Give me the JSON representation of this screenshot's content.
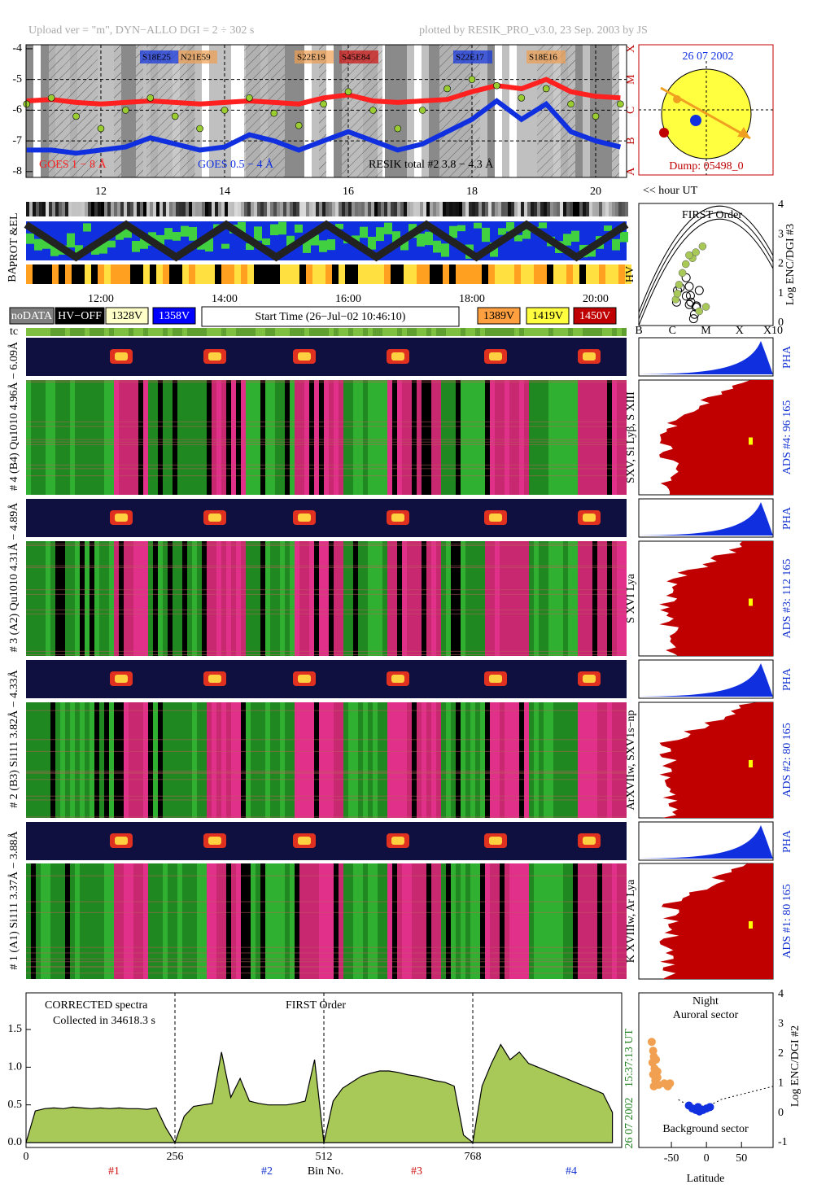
{
  "header": {
    "upload": "Upload ver = \"m\", DYN−ALLO DGI =   2 ÷ 302 s",
    "plotted": "plotted by RESIK_PRO_v3.0, 23 Sep. 2003 by JS"
  },
  "sun": {
    "date": "26 07 2002",
    "dump": "Dump: 05498_0"
  },
  "hour_label": "<< hour UT",
  "status": {
    "prot_el": "PROT &EL",
    "ba": "BA",
    "hv": "HV",
    "tc": "tc"
  },
  "legend": {
    "items": [
      {
        "label": "noDATA",
        "color": "#7f7f7f"
      },
      {
        "label": "HV−OFF",
        "color": "#000000"
      },
      {
        "label": "1328V",
        "color": "#ffffc8"
      },
      {
        "label": "1358V",
        "color": "#0000ff"
      },
      {
        "label": "1389V",
        "color": "#ffa040"
      },
      {
        "label": "1419V",
        "color": "#ffff40"
      },
      {
        "label": "1450V",
        "color": "#c00000"
      }
    ],
    "start_time": "Start Time (26−Jul−02 10:46:10)"
  },
  "channels": [
    {
      "label": "# 4 (B4)  Qu1010  4.96Å − 6.09Å",
      "lines": "SXV, Si Lyβ, S XIII",
      "ads": "ADS #4:   96 165",
      "pha": "PHA"
    },
    {
      "label": "# 3 (A2)  Qu1010  4.31Å − 4.89Å",
      "lines": "S XVI Lya",
      "ads": "ADS #3:   112 165",
      "pha": "PHA"
    },
    {
      "label": "# 2 (B3)  Si111  3.82Å − 4.33Å",
      "lines": "ArXVIIw, SXV1s−np",
      "ads": "ADS #2:   80 165",
      "pha": "PHA"
    },
    {
      "label": "# 1 (A1)  Si111  3.37Å − 3.88Å",
      "lines": "K XVIIIw, Ar Lya",
      "ads": "ADS #1:   80 165",
      "pha": "PHA"
    }
  ],
  "chart_data": [
    {
      "type": "line",
      "annotations": [
        "S18E25",
        "N21E59",
        "S22E19",
        "S45E84",
        "S22E17",
        "S18E16"
      ],
      "x": [
        10.8,
        11.2,
        11.6,
        12,
        12.4,
        12.8,
        13.2,
        13.6,
        14,
        14.4,
        14.8,
        15.2,
        15.6,
        16,
        16.4,
        16.8,
        17.2,
        17.6,
        18,
        18.4,
        18.8,
        19.2,
        19.6,
        20,
        20.4
      ],
      "series": [
        {
          "name": "GOES 1 − 8 Å",
          "color": "#ff2020",
          "style": "line",
          "values": [
            -5.7,
            -5.65,
            -5.75,
            -5.8,
            -5.75,
            -5.7,
            -5.75,
            -5.8,
            -5.75,
            -5.7,
            -5.75,
            -5.8,
            -5.6,
            -5.5,
            -5.7,
            -5.75,
            -5.7,
            -5.65,
            -5.4,
            -5.2,
            -5.3,
            -5.0,
            -5.4,
            -5.55,
            -5.6
          ]
        },
        {
          "name": "GOES 0.5 − 4 Å",
          "color": "#1030e0",
          "style": "line",
          "values": [
            -7.3,
            -7.3,
            -7.4,
            -7.3,
            -7.2,
            -6.9,
            -7.1,
            -7.3,
            -7.2,
            -6.8,
            -7.0,
            -7.3,
            -7.0,
            -6.7,
            -7.0,
            -7.3,
            -7.1,
            -6.7,
            -6.3,
            -5.7,
            -6.3,
            -5.8,
            -6.7,
            -7.0,
            -7.2
          ]
        },
        {
          "name": "RESIK total #2  3.8 − 4.3 Å",
          "color": "#9acd32",
          "style": "dots",
          "values": [
            -5.8,
            -5.6,
            -6.2,
            -6.6,
            -6.0,
            -5.6,
            -6.2,
            -6.6,
            -6.0,
            -5.6,
            -6.1,
            -6.5,
            -5.8,
            -5.4,
            -6.0,
            -6.6,
            -6.0,
            -5.3,
            -5.0,
            -5.2,
            -5.6,
            -5.3,
            -5.8,
            -6.2,
            -5.8
          ]
        }
      ],
      "xlim": [
        10.79,
        20.5
      ],
      "xticks": [
        12,
        14,
        16,
        18,
        20
      ],
      "xticks_bottom": [
        {
          "value": 12,
          "label": "12:00"
        },
        {
          "value": 14,
          "label": "14:00"
        },
        {
          "value": 16,
          "label": "16:00"
        },
        {
          "value": 18,
          "label": "18:00"
        },
        {
          "value": 20,
          "label": "20:00"
        }
      ],
      "ylim": [
        -8.19,
        -3.87
      ],
      "yticks": [
        -4,
        -5,
        -6,
        -7,
        -8
      ],
      "class_ticks": [
        {
          "value": -4,
          "label": "X"
        },
        {
          "value": -5,
          "label": "M"
        },
        {
          "value": -6,
          "label": "C"
        },
        {
          "value": -7,
          "label": "B"
        },
        {
          "value": -8,
          "label": "A"
        }
      ],
      "grid": true
    },
    {
      "type": "area",
      "title": "FIRST Order",
      "notes": [
        "CORRECTED spectra",
        "Collected in 34618.3 s"
      ],
      "xlabel": "Bin No.",
      "color": "#a8c858",
      "channel_labels": [
        {
          "text": "#1",
          "color": "#d01010"
        },
        {
          "text": "#2",
          "color": "#1030d0"
        },
        {
          "text": "#3",
          "color": "#d01010"
        },
        {
          "text": "#4",
          "color": "#1030d0"
        }
      ],
      "side_labels": [
        "15:37:13 UT",
        "26 07 2002"
      ],
      "x": [
        0,
        16,
        32,
        48,
        64,
        80,
        96,
        112,
        128,
        144,
        160,
        176,
        192,
        208,
        224,
        240,
        256,
        272,
        288,
        304,
        320,
        336,
        352,
        368,
        384,
        400,
        416,
        432,
        448,
        464,
        480,
        496,
        512,
        528,
        544,
        560,
        576,
        592,
        608,
        624,
        640,
        656,
        672,
        688,
        704,
        720,
        736,
        752,
        768,
        784,
        800,
        816,
        832,
        848,
        864,
        880,
        896,
        912,
        928,
        944,
        960,
        976,
        992,
        1008
      ],
      "values": [
        0,
        0.42,
        0.45,
        0.46,
        0.45,
        0.47,
        0.46,
        0.45,
        0.46,
        0.45,
        0.46,
        0.45,
        0.45,
        0.44,
        0.46,
        0.2,
        0,
        0.35,
        0.48,
        0.5,
        0.52,
        1.2,
        0.6,
        0.85,
        0.55,
        0.52,
        0.5,
        0.5,
        0.5,
        0.52,
        0.55,
        1.1,
        0,
        0.55,
        0.72,
        0.8,
        0.88,
        0.92,
        0.95,
        0.95,
        0.93,
        0.9,
        0.88,
        0.85,
        0.82,
        0.8,
        0.75,
        0.1,
        0,
        0.75,
        1.05,
        1.3,
        1.1,
        1.2,
        1.05,
        1.0,
        0.95,
        0.9,
        0.85,
        0.8,
        0.75,
        0.7,
        0.65,
        0.4
      ],
      "xlim": [
        0,
        1024
      ],
      "xticks": [
        0,
        256,
        512,
        768
      ],
      "ylim": [
        -0.065,
        1.986
      ],
      "yticks": [
        {
          "value": 0,
          "label": "0.0"
        },
        {
          "value": 0.5,
          "label": "0.5"
        },
        {
          "value": 1,
          "label": "1.0"
        },
        {
          "value": 1.5,
          "label": "1.5"
        }
      ]
    },
    {
      "type": "scatter",
      "title": "Night",
      "labels": [
        "Auroral sector",
        "Background sector"
      ],
      "xlabel": "Latitude",
      "ylabel": "Log ENC/DGI #2",
      "series": [
        {
          "color": "#f0a050",
          "x": [
            -78,
            -76,
            -75,
            -77,
            -74,
            -76,
            -73,
            -75,
            -70,
            -68,
            -60,
            -55,
            -52,
            -72,
            -70
          ],
          "values": [
            2.4,
            2.1,
            1.9,
            1.7,
            1.5,
            1.3,
            1.1,
            0.9,
            1.2,
            0.95,
            1.0,
            0.9,
            1.0,
            1.8,
            1.4
          ]
        },
        {
          "color": "#1030e0",
          "x": [
            -20,
            -15,
            -10,
            -5,
            0,
            5,
            -25,
            -12
          ],
          "values": [
            0.15,
            0.1,
            0.05,
            0.1,
            0.15,
            0.2,
            0.25,
            0.2
          ]
        }
      ],
      "xlim": [
        -96.5,
        95
      ],
      "xticks": [
        -50,
        0,
        50
      ],
      "ylim": [
        -1.165,
        4.055
      ],
      "yticks": [
        4,
        3,
        2,
        1,
        0,
        -1
      ]
    },
    {
      "type": "scatter",
      "title": "FIRST Order",
      "ylabel": "Log ENC/DGI #3",
      "series": [
        {
          "color": "#a8c858",
          "x": [
            -5.9,
            -5.8,
            -5.7,
            -5.6,
            -5.4,
            -5.3,
            -5.1,
            -5.5,
            -5.85,
            -5.2,
            -5.0
          ],
          "values": [
            0.8,
            1.3,
            1.7,
            2.0,
            2.2,
            2.4,
            2.6,
            2.3,
            1.0,
            0.4,
            0.55
          ]
        }
      ],
      "xlim": [
        -7,
        -3
      ],
      "xticks": [
        {
          "value": -7,
          "label": "B"
        },
        {
          "value": -6,
          "label": "C"
        },
        {
          "value": -5,
          "label": "M"
        },
        {
          "value": -4,
          "label": "X"
        },
        {
          "value": -3,
          "label": "X10"
        }
      ],
      "ylim": [
        -0.083,
        4.055
      ],
      "yticks": [
        4,
        3,
        2,
        1,
        0
      ]
    }
  ]
}
